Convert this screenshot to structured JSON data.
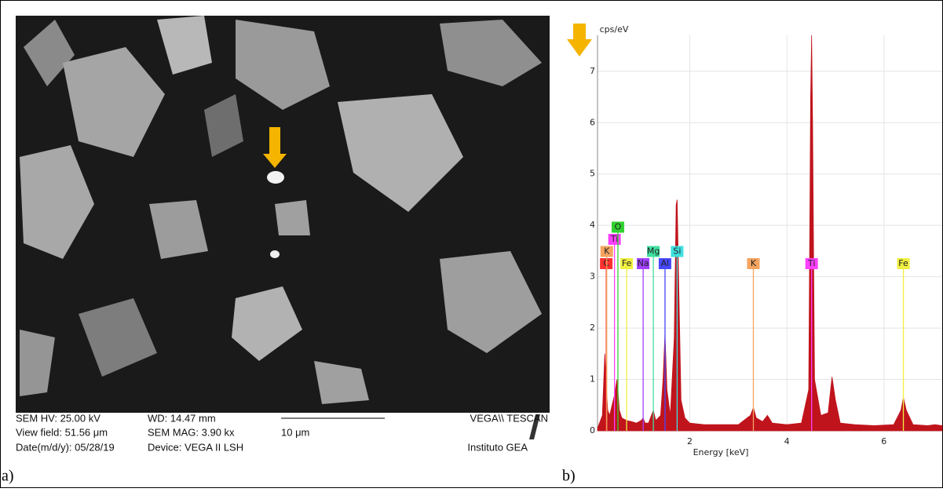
{
  "panel_a": {
    "label": "a)",
    "info": [
      [
        "SEM HV: 25.00 kV",
        "WD: 14.47 mm",
        "VEGA\\\\ TESCAN"
      ],
      [
        "View field: 51.56 μm",
        "SEM MAG: 3.90 kx",
        "10 μm"
      ],
      [
        "Date(m/d/y): 05/28/19",
        "Device: VEGA II LSH",
        "Instituto GEA"
      ]
    ]
  },
  "panel_b": {
    "label": "b)"
  },
  "chart_data": {
    "type": "area",
    "ylabel": "cps/eV",
    "xlabel": "Energy [keV]",
    "xlim": [
      0.1,
      7.2
    ],
    "xticks": [
      2,
      4,
      6
    ],
    "ylim": [
      0,
      7.7
    ],
    "yticks": [
      0,
      1,
      2,
      3,
      4,
      5,
      6,
      7
    ],
    "grid": true,
    "x": [
      0.1,
      0.2,
      0.25,
      0.28,
      0.31,
      0.35,
      0.4,
      0.45,
      0.5,
      0.52,
      0.55,
      0.6,
      0.7,
      0.8,
      0.9,
      1.0,
      1.04,
      1.08,
      1.15,
      1.25,
      1.3,
      1.4,
      1.45,
      1.49,
      1.53,
      1.6,
      1.68,
      1.72,
      1.74,
      1.77,
      1.82,
      1.9,
      2.0,
      2.3,
      2.6,
      3.0,
      3.25,
      3.31,
      3.37,
      3.5,
      3.6,
      3.7,
      4.0,
      4.3,
      4.45,
      4.49,
      4.51,
      4.53,
      4.57,
      4.7,
      4.85,
      4.93,
      5.0,
      5.1,
      5.4,
      5.8,
      6.2,
      6.35,
      6.4,
      6.46,
      6.6,
      6.9,
      7.05,
      7.2
    ],
    "series": [
      {
        "color": "#c0141c",
        "values": [
          0.05,
          0.3,
          1.5,
          0.9,
          0.4,
          0.3,
          0.5,
          0.7,
          1.0,
          0.8,
          0.4,
          0.25,
          0.2,
          0.18,
          0.15,
          0.2,
          0.25,
          0.15,
          0.15,
          0.4,
          0.2,
          0.3,
          1.0,
          1.9,
          0.8,
          0.3,
          1.8,
          4.4,
          4.5,
          3.0,
          0.6,
          0.25,
          0.15,
          0.12,
          0.12,
          0.12,
          0.3,
          0.45,
          0.25,
          0.18,
          0.3,
          0.15,
          0.12,
          0.15,
          0.8,
          6.5,
          7.7,
          6.0,
          1.0,
          0.3,
          0.35,
          1.05,
          0.6,
          0.15,
          0.12,
          0.1,
          0.12,
          0.4,
          0.65,
          0.4,
          0.12,
          0.1,
          0.12,
          0.1
        ]
      }
    ],
    "annotations": [
      {
        "label": "C",
        "x": 0.28,
        "color": "#ff3030"
      },
      {
        "label": "K",
        "x": 0.29,
        "color": "#f4a460"
      },
      {
        "label": "Ti",
        "x": 0.45,
        "color": "#ff40ff"
      },
      {
        "label": "O",
        "x": 0.52,
        "color": "#30d030"
      },
      {
        "label": "Fe",
        "x": 0.7,
        "color": "#f0f040"
      },
      {
        "label": "Na",
        "x": 1.04,
        "color": "#a040ff"
      },
      {
        "label": "Mg",
        "x": 1.25,
        "color": "#40e0a0"
      },
      {
        "label": "Al",
        "x": 1.49,
        "color": "#4848ff"
      },
      {
        "label": "Si",
        "x": 1.74,
        "color": "#40e0e0"
      },
      {
        "label": "K",
        "x": 3.31,
        "color": "#f4a460"
      },
      {
        "label": "Ti",
        "x": 4.51,
        "color": "#ff40ff"
      },
      {
        "label": "Fe",
        "x": 6.4,
        "color": "#f0f040"
      }
    ]
  }
}
